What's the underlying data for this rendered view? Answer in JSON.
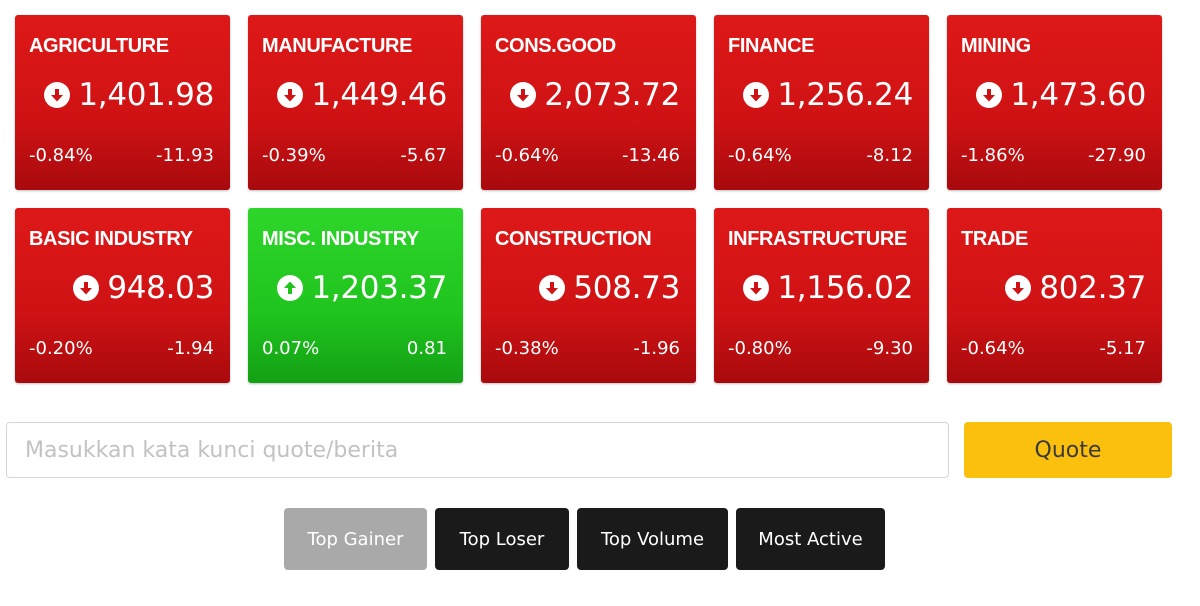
{
  "sectors": [
    {
      "name": "AGRICULTURE",
      "value": "1,401.98",
      "pct": "-0.84%",
      "change": "-11.93",
      "direction": "down"
    },
    {
      "name": "MANUFACTURE",
      "value": "1,449.46",
      "pct": "-0.39%",
      "change": "-5.67",
      "direction": "down"
    },
    {
      "name": "CONS.GOOD",
      "value": "2,073.72",
      "pct": "-0.64%",
      "change": "-13.46",
      "direction": "down"
    },
    {
      "name": "FINANCE",
      "value": "1,256.24",
      "pct": "-0.64%",
      "change": "-8.12",
      "direction": "down"
    },
    {
      "name": "MINING",
      "value": "1,473.60",
      "pct": "-1.86%",
      "change": "-27.90",
      "direction": "down"
    },
    {
      "name": "BASIC INDUSTRY",
      "value": "948.03",
      "pct": "-0.20%",
      "change": "-1.94",
      "direction": "down"
    },
    {
      "name": "MISC. INDUSTRY",
      "value": "1,203.37",
      "pct": "0.07%",
      "change": "0.81",
      "direction": "up"
    },
    {
      "name": "CONSTRUCTION",
      "value": "508.73",
      "pct": "-0.38%",
      "change": "-1.96",
      "direction": "down"
    },
    {
      "name": "INFRASTRUCTURE",
      "value": "1,156.02",
      "pct": "-0.80%",
      "change": "-9.30",
      "direction": "down"
    },
    {
      "name": "TRADE",
      "value": "802.37",
      "pct": "-0.64%",
      "change": "-5.17",
      "direction": "down"
    }
  ],
  "colors": {
    "down": "#cf1214",
    "up": "#1fc41e",
    "quote_button": "#fbbf0e",
    "tab_active": "#a9a9a9",
    "tab_inactive": "#1a1a1a"
  },
  "icons": {
    "down": "arrow-down-circle-icon",
    "up": "arrow-up-circle-icon"
  },
  "search": {
    "placeholder": "Masukkan kata kunci quote/berita",
    "value": "",
    "button_label": "Quote"
  },
  "tabs": [
    {
      "label": "Top Gainer",
      "active": true
    },
    {
      "label": "Top Loser",
      "active": false
    },
    {
      "label": "Top Volume",
      "active": false
    },
    {
      "label": "Most Active",
      "active": false
    }
  ]
}
